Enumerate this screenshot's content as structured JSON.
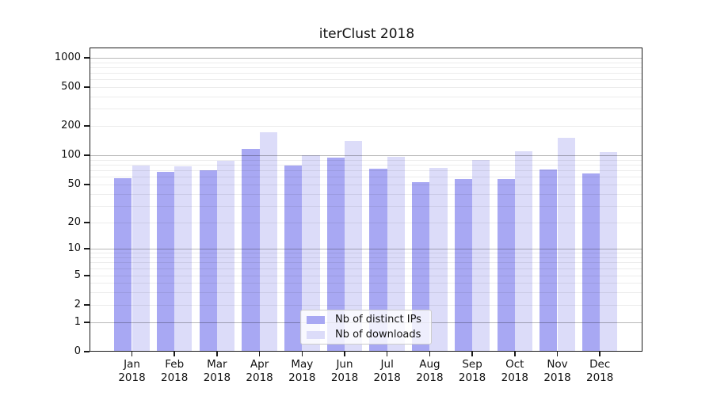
{
  "chart_data": {
    "type": "bar",
    "title": "iterClust 2018",
    "categories": [
      "Jan",
      "Feb",
      "Mar",
      "Apr",
      "May",
      "Jun",
      "Jul",
      "Aug",
      "Sep",
      "Oct",
      "Nov",
      "Dec"
    ],
    "year_label": "2018",
    "series": [
      {
        "name": "Nb of distinct IPs",
        "color": "#a8a8f3",
        "values": [
          58,
          68,
          70,
          117,
          79,
          94,
          73,
          53,
          57,
          57,
          72,
          65
        ]
      },
      {
        "name": "Nb of downloads",
        "color": "#dcdcf9",
        "values": [
          78,
          77,
          87,
          171,
          100,
          139,
          96,
          74,
          90,
          110,
          150,
          107
        ]
      }
    ],
    "yticks": [
      0,
      1,
      2,
      5,
      10,
      20,
      50,
      100,
      200,
      500,
      1000
    ],
    "yscale": "symlog",
    "ylim": [
      0,
      1300
    ],
    "grid": true,
    "legend_position": "lower center",
    "axis_color": "#1a1a1a"
  }
}
